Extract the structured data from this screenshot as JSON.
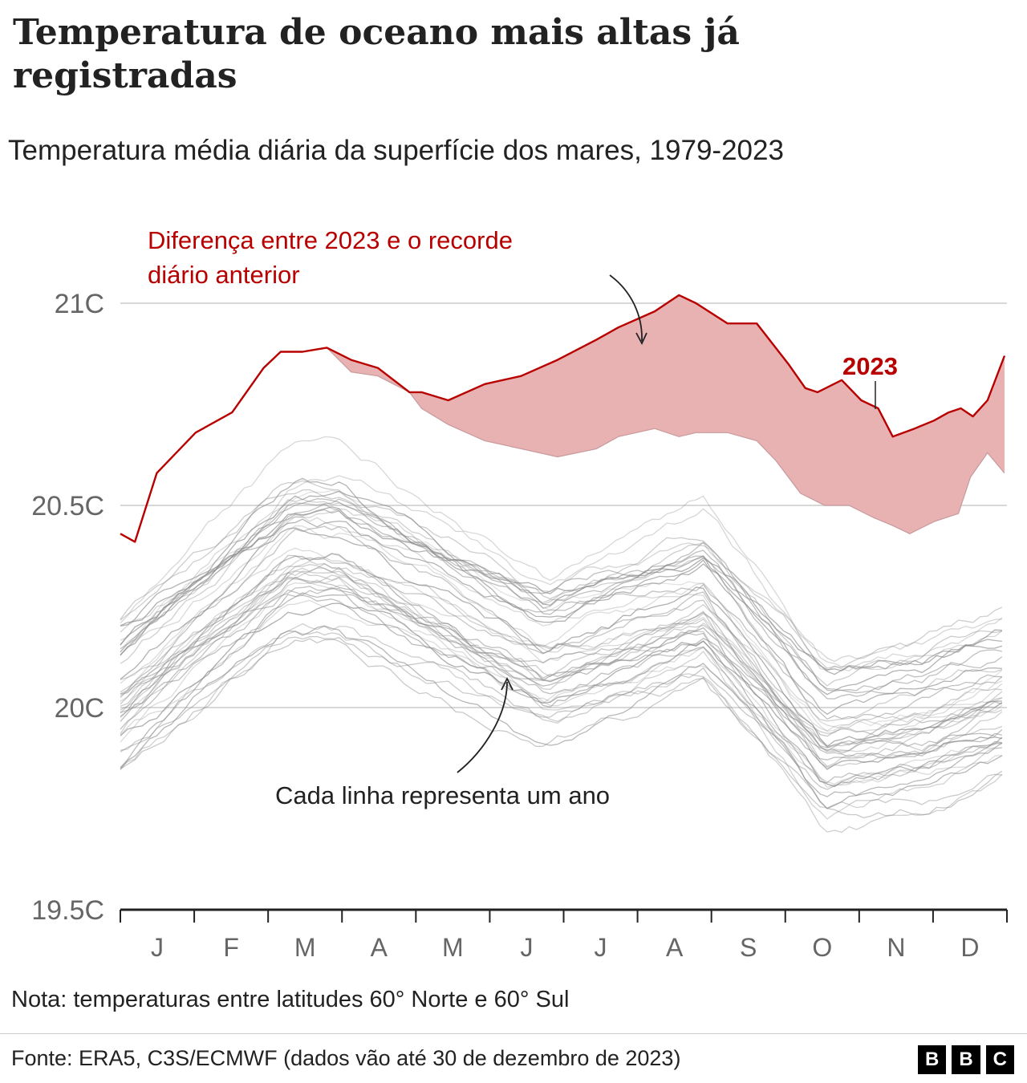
{
  "header": {
    "title": "Temperatura de oceano mais altas já registradas",
    "subtitle": "Temperatura média diária da superfície dos mares, 1979-2023"
  },
  "colors": {
    "highlight_line": "#b80000",
    "gap_fill": "#e8b2b3",
    "past_years": "#8a8a8a",
    "gridline": "#cccccc",
    "axis": "#222222"
  },
  "chart_data": {
    "type": "line",
    "title": "Temperatura média diária da superfície dos mares, 1979-2023",
    "xlabel": "",
    "ylabel": "",
    "ylim": [
      19.5,
      21.2
    ],
    "y_ticks": [
      19.5,
      20.0,
      20.5,
      21.0
    ],
    "y_tick_labels": [
      "19.5C",
      "20C",
      "20.5C",
      "21C"
    ],
    "x_tick_labels": [
      "J",
      "F",
      "M",
      "A",
      "M",
      "J",
      "J",
      "A",
      "S",
      "O",
      "N",
      "D"
    ],
    "x_domain_days": [
      0,
      365
    ],
    "grid": true,
    "highlight_series": {
      "name": "2023",
      "x": [
        0,
        6,
        15,
        31,
        46,
        59,
        66,
        75,
        85,
        95,
        106,
        119,
        124,
        135,
        150,
        165,
        180,
        196,
        205,
        220,
        230,
        237,
        250,
        262,
        275,
        282,
        287,
        297,
        305,
        312,
        318,
        327,
        335,
        341,
        346,
        351,
        357,
        364
      ],
      "values": [
        20.43,
        20.41,
        20.58,
        20.68,
        20.73,
        20.84,
        20.88,
        20.88,
        20.89,
        20.86,
        20.84,
        20.78,
        20.78,
        20.76,
        20.8,
        20.82,
        20.86,
        20.91,
        20.94,
        20.98,
        21.02,
        21.0,
        20.95,
        20.95,
        20.85,
        20.79,
        20.78,
        20.81,
        20.76,
        20.74,
        20.67,
        20.69,
        20.71,
        20.73,
        20.74,
        20.72,
        20.76,
        20.87
      ]
    },
    "previous_record": {
      "name": "Recorde diário anterior",
      "x": [
        85,
        95,
        106,
        119,
        124,
        135,
        150,
        165,
        180,
        196,
        205,
        220,
        230,
        237,
        250,
        262,
        270,
        280,
        290,
        300,
        310,
        318,
        325,
        335,
        345,
        350,
        357,
        364
      ],
      "values": [
        20.89,
        20.83,
        20.82,
        20.78,
        20.74,
        20.7,
        20.66,
        20.64,
        20.62,
        20.64,
        20.67,
        20.69,
        20.67,
        20.68,
        20.68,
        20.66,
        20.61,
        20.53,
        20.5,
        20.5,
        20.47,
        20.45,
        20.43,
        20.46,
        20.48,
        20.57,
        20.63,
        20.58
      ]
    },
    "past_years_series_count": 44,
    "annotations": [
      {
        "text": "Diferença entre 2023 e o recorde diário anterior",
        "target": "área entre 2023 e o recorde anterior"
      },
      {
        "text": "Cada linha representa um ano",
        "target": "linhas cinza dos anos anteriores"
      },
      {
        "text": "2023",
        "target": "linha vermelha"
      }
    ]
  },
  "annotations": {
    "gap_label_line1": "Diferença entre 2023 e o recorde",
    "gap_label_line2": "diário anterior",
    "lines_label": "Cada linha representa um ano",
    "year_label": "2023"
  },
  "footer": {
    "note": "Nota: temperaturas entre latitudes 60° Norte e 60° Sul",
    "source": "Fonte: ERA5, C3S/ECMWF (dados vão até 30 de dezembro de 2023)",
    "logo_letters": [
      "B",
      "B",
      "C"
    ]
  }
}
